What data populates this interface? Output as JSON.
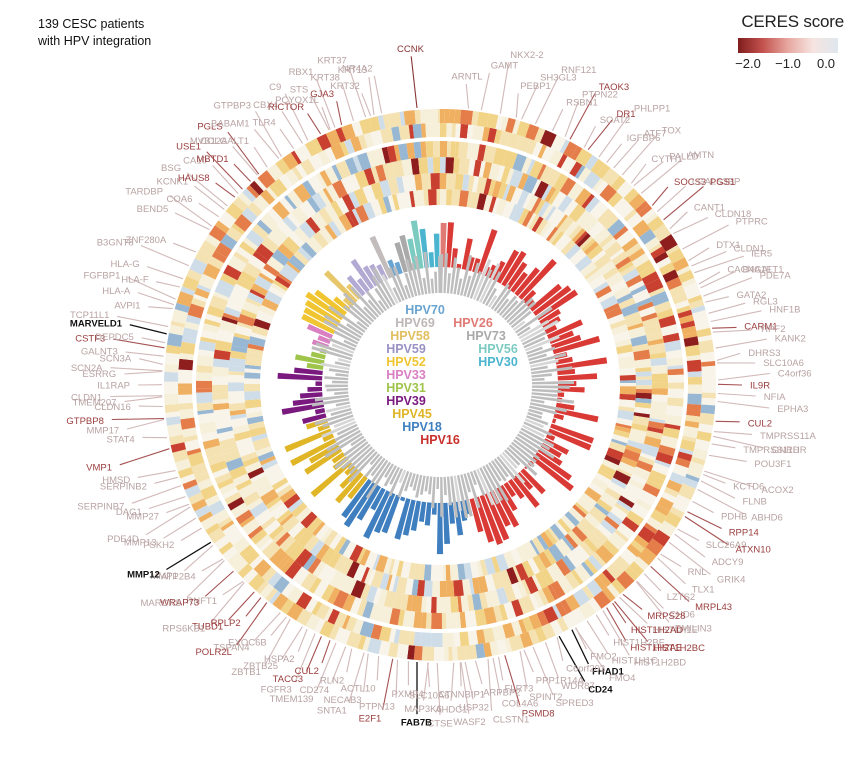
{
  "header": {
    "title_line1": "139 CESC patients",
    "title_line2": "with HPV integration"
  },
  "legend": {
    "title": "CERES score",
    "ticks": [
      "−2.0",
      "−1.0",
      "0.0"
    ],
    "gradient_colors": [
      "#7f1d1d",
      "#c4534f",
      "#e7a8a0",
      "#f6e4e1",
      "#dfe7ee"
    ]
  },
  "chart_data": {
    "type": "circular-heatmap",
    "patient_count": 139,
    "hpv_types": [
      {
        "name": "HPV16",
        "color": "#d93a36",
        "patients": 63
      },
      {
        "name": "HPV18",
        "color": "#3f7fbf",
        "patients": 20
      },
      {
        "name": "HPV45",
        "color": "#e0b526",
        "patients": 14
      },
      {
        "name": "HPV39",
        "color": "#7a1a7f",
        "patients": 9
      },
      {
        "name": "HPV31",
        "color": "#9fc44a",
        "patients": 4
      },
      {
        "name": "HPV33",
        "color": "#d97fc2",
        "patients": 3
      },
      {
        "name": "HPV52",
        "color": "#f0c531",
        "patients": 6
      },
      {
        "name": "HPV58",
        "color": "#e8c76a",
        "patients": 3
      },
      {
        "name": "HPV59",
        "color": "#b3aad3",
        "patients": 6
      },
      {
        "name": "HPV69",
        "color": "#c2bcbc",
        "patients": 1
      },
      {
        "name": "HPV70",
        "color": "#6aa4d0",
        "patients": 2
      },
      {
        "name": "HPV26",
        "color": "#e07a74",
        "patients": 1
      },
      {
        "name": "HPV73",
        "color": "#aaaaaa",
        "patients": 2
      },
      {
        "name": "HPV56",
        "color": "#7ccbc1",
        "patients": 2
      },
      {
        "name": "HPV30",
        "color": "#4bb4cf",
        "patients": 3
      }
    ],
    "center_labels": [
      {
        "text": "HPV70",
        "color": "#6aa4d0"
      },
      {
        "text": "HPV69",
        "color": "#bdb6b6"
      },
      {
        "text": "HPV26",
        "color": "#e07a74"
      },
      {
        "text": "HPV58",
        "color": "#e2bf5e"
      },
      {
        "text": "HPV73",
        "color": "#aaaaaa"
      },
      {
        "text": "HPV59",
        "color": "#9a92c4"
      },
      {
        "text": "HPV56",
        "color": "#7ccbc1"
      },
      {
        "text": "HPV52",
        "color": "#f0c531"
      },
      {
        "text": "HPV30",
        "color": "#4bb4cf"
      },
      {
        "text": "HPV33",
        "color": "#d97fc2"
      },
      {
        "text": "HPV31",
        "color": "#9fc44a"
      },
      {
        "text": "HPV39",
        "color": "#7a1a7f"
      },
      {
        "text": "HPV45",
        "color": "#e0b526"
      },
      {
        "text": "HPV18",
        "color": "#3f7fbf"
      },
      {
        "text": "HPV16",
        "color": "#c92f2b"
      }
    ],
    "genes": [
      {
        "name": "PCYOX1L",
        "angle": -23,
        "tone": "light"
      },
      {
        "name": "NR4A2",
        "angle": -12,
        "tone": "light"
      },
      {
        "name": "CCNK",
        "angle": -5,
        "tone": "dark"
      },
      {
        "name": "ARNTL",
        "angle": 5,
        "tone": "light"
      },
      {
        "name": "GAMT",
        "angle": 9,
        "tone": "light"
      },
      {
        "name": "NKX2-2",
        "angle": 12,
        "tone": "light"
      },
      {
        "name": "PEBP1",
        "angle": 15,
        "tone": "light"
      },
      {
        "name": "SH3GL3",
        "angle": 18,
        "tone": "light"
      },
      {
        "name": "RNF121",
        "angle": 21,
        "tone": "light"
      },
      {
        "name": "RSBN1",
        "angle": 24,
        "tone": "light"
      },
      {
        "name": "PTPN22",
        "angle": 26,
        "tone": "light"
      },
      {
        "name": "TAOK3",
        "angle": 28,
        "tone": "mid"
      },
      {
        "name": "SOAT2",
        "angle": 31,
        "tone": "light"
      },
      {
        "name": "DR1",
        "angle": 33,
        "tone": "mid"
      },
      {
        "name": "PHLPP1",
        "angle": 35,
        "tone": "light"
      },
      {
        "name": "IGFBP6",
        "angle": 37,
        "tone": "light"
      },
      {
        "name": "ATF7",
        "angle": 39,
        "tone": "light"
      },
      {
        "name": "TOX",
        "angle": 41,
        "tone": "light"
      },
      {
        "name": "CYTH1",
        "angle": 43,
        "tone": "light"
      },
      {
        "name": "PALLD",
        "angle": 45,
        "tone": "light"
      },
      {
        "name": "AMTN",
        "angle": 47,
        "tone": "light"
      },
      {
        "name": "SOCS3",
        "angle": 49,
        "tone": "mid"
      },
      {
        "name": "LGALS3BP",
        "angle": 51,
        "tone": "light"
      },
      {
        "name": "PGS1",
        "angle": 53,
        "tone": "mid"
      },
      {
        "name": "CANT1",
        "angle": 55,
        "tone": "light"
      },
      {
        "name": "CLDN18",
        "angle": 58,
        "tone": "light"
      },
      {
        "name": "PTPRC",
        "angle": 61,
        "tone": "light"
      },
      {
        "name": "DTX1",
        "angle": 63,
        "tone": "light"
      },
      {
        "name": "CLDN1",
        "angle": 65,
        "tone": "light"
      },
      {
        "name": "IER5",
        "angle": 67,
        "tone": "light"
      },
      {
        "name": "CACNA1E",
        "angle": 68,
        "tone": "light"
      },
      {
        "name": "B4GALT1",
        "angle": 69,
        "tone": "light"
      },
      {
        "name": "PDE7A",
        "angle": 71,
        "tone": "light"
      },
      {
        "name": "GATA2",
        "angle": 73,
        "tone": "light"
      },
      {
        "name": "RGL3",
        "angle": 75,
        "tone": "light"
      },
      {
        "name": "HNF1B",
        "angle": 77,
        "tone": "light"
      },
      {
        "name": "CARM1",
        "angle": 79,
        "tone": "mid"
      },
      {
        "name": "YIPF2",
        "angle": 80,
        "tone": "light"
      },
      {
        "name": "KANK2",
        "angle": 82,
        "tone": "light"
      },
      {
        "name": "DHRS3",
        "angle": 84,
        "tone": "light"
      },
      {
        "name": "SLC10A6",
        "angle": 86,
        "tone": "light"
      },
      {
        "name": "C4orf36",
        "angle": 88,
        "tone": "light"
      },
      {
        "name": "IL9R",
        "angle": 90,
        "tone": "mid"
      },
      {
        "name": "NFIA",
        "angle": 92,
        "tone": "light"
      },
      {
        "name": "EPHA3",
        "angle": 94,
        "tone": "light"
      },
      {
        "name": "CUL2",
        "angle": 97,
        "tone": "mid"
      },
      {
        "name": "TMPRSS11A",
        "angle": 99,
        "tone": "light"
      },
      {
        "name": "GNRHR",
        "angle": 101,
        "tone": "light"
      },
      {
        "name": "TMPRSS11D",
        "angle": 102,
        "tone": "light"
      },
      {
        "name": "POU3F1",
        "angle": 104,
        "tone": "light"
      },
      {
        "name": "ACOX2",
        "angle": 108,
        "tone": "light"
      },
      {
        "name": "KCTD6",
        "angle": 109,
        "tone": "light"
      },
      {
        "name": "FLNB",
        "angle": 111,
        "tone": "light"
      },
      {
        "name": "ABHD6",
        "angle": 113,
        "tone": "light"
      },
      {
        "name": "PDHB",
        "angle": 115,
        "tone": "light"
      },
      {
        "name": "RPP14",
        "angle": 117,
        "tone": "mid"
      },
      {
        "name": "ATXN10",
        "angle": 119,
        "tone": "mid"
      },
      {
        "name": "SLC26A9",
        "angle": 121,
        "tone": "light"
      },
      {
        "name": "ADCY9",
        "angle": 123,
        "tone": "light"
      },
      {
        "name": "GRIK4",
        "angle": 125,
        "tone": "light"
      },
      {
        "name": "RNL",
        "angle": 127,
        "tone": "light"
      },
      {
        "name": "TLX1",
        "angle": 129,
        "tone": "light"
      },
      {
        "name": "MRPL43",
        "angle": 131,
        "tone": "mid"
      },
      {
        "name": "LZTS2",
        "angle": 133,
        "tone": "light"
      },
      {
        "name": "CHD6",
        "angle": 135,
        "tone": "light"
      },
      {
        "name": "EMILIN3",
        "angle": 136,
        "tone": "light"
      },
      {
        "name": "MRPS28",
        "angle": 138,
        "tone": "mid"
      },
      {
        "name": "HIST1H1E",
        "angle": 139,
        "tone": "light"
      },
      {
        "name": "HIST1H2BC",
        "angle": 141,
        "tone": "mid"
      },
      {
        "name": "HIST1H2AD",
        "angle": 142,
        "tone": "mid"
      },
      {
        "name": "HIST1H2AE",
        "angle": 144,
        "tone": "mid"
      },
      {
        "name": "HIST1H2BD",
        "angle": 145,
        "tone": "light"
      },
      {
        "name": "HIST1H2BF",
        "angle": 146,
        "tone": "light"
      },
      {
        "name": "HIST1H1C",
        "angle": 148,
        "tone": "light"
      },
      {
        "name": "FMO4",
        "angle": 150,
        "tone": "light"
      },
      {
        "name": "FMO2",
        "angle": 151,
        "tone": "light"
      },
      {
        "name": "FHAD1",
        "angle": 152,
        "tone": "black"
      },
      {
        "name": "CD24",
        "angle": 154,
        "tone": "black"
      },
      {
        "name": "C6orf203",
        "angle": 156,
        "tone": "light"
      },
      {
        "name": "WDR87",
        "angle": 158,
        "tone": "light"
      },
      {
        "name": "SPRED3",
        "angle": 160,
        "tone": "light"
      },
      {
        "name": "PPP1R14A",
        "angle": 162,
        "tone": "light"
      },
      {
        "name": "SPINT2",
        "angle": 164,
        "tone": "light"
      },
      {
        "name": "PSMD8",
        "angle": 166,
        "tone": "mid"
      },
      {
        "name": "FLRT3",
        "angle": 168,
        "tone": "light"
      },
      {
        "name": "COL4A6",
        "angle": 169,
        "tone": "light"
      },
      {
        "name": "CLSTN1",
        "angle": 171,
        "tone": "light"
      },
      {
        "name": "ARPBP2",
        "angle": 172,
        "tone": "light"
      },
      {
        "name": "USP32",
        "angle": 174,
        "tone": "light"
      },
      {
        "name": "WASF2",
        "angle": 175,
        "tone": "light"
      },
      {
        "name": "CTNNBIP1",
        "angle": 176,
        "tone": "light"
      },
      {
        "name": "AHDC1",
        "angle": 178,
        "tone": "light"
      },
      {
        "name": "CTSE",
        "angle": 180,
        "tone": "light"
      },
      {
        "name": "SLC10A6",
        "angle": 182,
        "tone": "light"
      },
      {
        "name": "MAP3K6",
        "angle": 183,
        "tone": "light"
      },
      {
        "name": "FAB7B",
        "angle": 184,
        "tone": "black"
      },
      {
        "name": "PXMP4",
        "angle": 186,
        "tone": "light"
      },
      {
        "name": "PTPN13",
        "angle": 188,
        "tone": "light"
      },
      {
        "name": "E2F1",
        "angle": 190,
        "tone": "mid"
      },
      {
        "name": "ACTL10",
        "angle": 192,
        "tone": "light"
      },
      {
        "name": "NECAB3",
        "angle": 194,
        "tone": "light"
      },
      {
        "name": "SNTA1",
        "angle": 196,
        "tone": "light"
      },
      {
        "name": "RLN2",
        "angle": 198,
        "tone": "light"
      },
      {
        "name": "CD274",
        "angle": 200,
        "tone": "light"
      },
      {
        "name": "TMEM139",
        "angle": 202,
        "tone": "light"
      },
      {
        "name": "CUL2",
        "angle": 203,
        "tone": "mid"
      },
      {
        "name": "TACC3",
        "angle": 205,
        "tone": "mid"
      },
      {
        "name": "FGFR3",
        "angle": 206,
        "tone": "light"
      },
      {
        "name": "HSPA2",
        "angle": 208,
        "tone": "light"
      },
      {
        "name": "ZBTB25",
        "angle": 210,
        "tone": "light"
      },
      {
        "name": "ZBTB1",
        "angle": 212,
        "tone": "light"
      },
      {
        "name": "EXOC6B",
        "angle": 214,
        "tone": "light"
      },
      {
        "name": "TSPAN4",
        "angle": 216,
        "tone": "light"
      },
      {
        "name": "POLR2L",
        "angle": 218,
        "tone": "mid"
      },
      {
        "name": "RPLP2",
        "angle": 220,
        "tone": "mid"
      },
      {
        "name": "TUBD1",
        "angle": 222,
        "tone": "mid"
      },
      {
        "name": "RPS6KB1",
        "angle": 224,
        "tone": "light"
      },
      {
        "name": "RNFT1",
        "angle": 226,
        "tone": "light"
      },
      {
        "name": "WRAP73",
        "angle": 228,
        "tone": "mid"
      },
      {
        "name": "MARCKS",
        "angle": 230,
        "tone": "light"
      },
      {
        "name": "ATP2B4",
        "angle": 232,
        "tone": "light"
      },
      {
        "name": "MMP1",
        "angle": 234,
        "tone": "light"
      },
      {
        "name": "MMP12",
        "angle": 236,
        "tone": "black"
      },
      {
        "name": "PSKH2",
        "angle": 239,
        "tone": "light"
      },
      {
        "name": "MMP13",
        "angle": 241,
        "tone": "light"
      },
      {
        "name": "PDE4D",
        "angle": 243,
        "tone": "light"
      },
      {
        "name": "MMP27",
        "angle": 245,
        "tone": "light"
      },
      {
        "name": "DAG1",
        "angle": 247,
        "tone": "light"
      },
      {
        "name": "SERPINB7",
        "angle": 249,
        "tone": "light"
      },
      {
        "name": "SERPINB2",
        "angle": 251,
        "tone": "light"
      },
      {
        "name": "HMSD",
        "angle": 253,
        "tone": "light"
      },
      {
        "name": "VMP1",
        "angle": 256,
        "tone": "mid"
      },
      {
        "name": "STAT4",
        "angle": 260,
        "tone": "light"
      },
      {
        "name": "MMP17",
        "angle": 262,
        "tone": "light"
      },
      {
        "name": "GTPBP8",
        "angle": 264,
        "tone": "mid"
      },
      {
        "name": "CLDN16",
        "angle": 266,
        "tone": "light"
      },
      {
        "name": "TMEM207",
        "angle": 267,
        "tone": "light"
      },
      {
        "name": "CLDN1",
        "angle": 268,
        "tone": "light"
      },
      {
        "name": "IL1RAP",
        "angle": 270,
        "tone": "light"
      },
      {
        "name": "ESRRG",
        "angle": 272,
        "tone": "light"
      },
      {
        "name": "SCN2A",
        "angle": 273,
        "tone": "light"
      },
      {
        "name": "SCN3A",
        "angle": 275,
        "tone": "light"
      },
      {
        "name": "GALNT3",
        "angle": 276,
        "tone": "light"
      },
      {
        "name": "CSTF3",
        "angle": 278,
        "tone": "mid"
      },
      {
        "name": "DEPDC5",
        "angle": 279,
        "tone": "light"
      },
      {
        "name": "MARVELD1",
        "angle": 281,
        "tone": "black"
      },
      {
        "name": "TCP11L1",
        "angle": 282,
        "tone": "light"
      },
      {
        "name": "AVPI1",
        "angle": 285,
        "tone": "light"
      },
      {
        "name": "HLA-A",
        "angle": 287,
        "tone": "light"
      },
      {
        "name": "FGFBP1",
        "angle": 289,
        "tone": "light"
      },
      {
        "name": "HLA-F",
        "angle": 290,
        "tone": "light"
      },
      {
        "name": "HLA-G",
        "angle": 292,
        "tone": "light"
      },
      {
        "name": "B3GNT8",
        "angle": 295,
        "tone": "light"
      },
      {
        "name": "ZNF280A",
        "angle": 298,
        "tone": "light"
      },
      {
        "name": "BEND5",
        "angle": 303,
        "tone": "light"
      },
      {
        "name": "TARDBP",
        "angle": 305,
        "tone": "light"
      },
      {
        "name": "COA6",
        "angle": 307,
        "tone": "light"
      },
      {
        "name": "KCNK1",
        "angle": 309,
        "tone": "light"
      },
      {
        "name": "BSG",
        "angle": 310,
        "tone": "light"
      },
      {
        "name": "HAUS8",
        "angle": 312,
        "tone": "mid"
      },
      {
        "name": "CA10",
        "angle": 314,
        "tone": "light"
      },
      {
        "name": "USE1",
        "angle": 315,
        "tone": "mid"
      },
      {
        "name": "MBTD1",
        "angle": 317,
        "tone": "mid"
      },
      {
        "name": "MVB12A",
        "angle": 319,
        "tone": "light"
      },
      {
        "name": "PGLS",
        "angle": 320,
        "tone": "mid"
      },
      {
        "name": "COLGALT1",
        "angle": 322,
        "tone": "light"
      },
      {
        "name": "BABAM1",
        "angle": 324,
        "tone": "light"
      },
      {
        "name": "GTPBP3",
        "angle": 326,
        "tone": "light"
      },
      {
        "name": "TLR4",
        "angle": 328,
        "tone": "light"
      },
      {
        "name": "CBX4",
        "angle": 330,
        "tone": "light"
      },
      {
        "name": "C9",
        "angle": 332,
        "tone": "light"
      },
      {
        "name": "RICTOR",
        "angle": 334,
        "tone": "mid"
      },
      {
        "name": "STS",
        "angle": 336,
        "tone": "light"
      },
      {
        "name": "RBX1",
        "angle": 338,
        "tone": "light"
      },
      {
        "name": "GJA3",
        "angle": 340,
        "tone": "mid"
      },
      {
        "name": "KRT38",
        "angle": 342,
        "tone": "light"
      },
      {
        "name": "KRT37",
        "angle": 344,
        "tone": "light"
      },
      {
        "name": "KRT32",
        "angle": 345,
        "tone": "light"
      },
      {
        "name": "KRT13",
        "angle": 347,
        "tone": "light"
      }
    ]
  }
}
